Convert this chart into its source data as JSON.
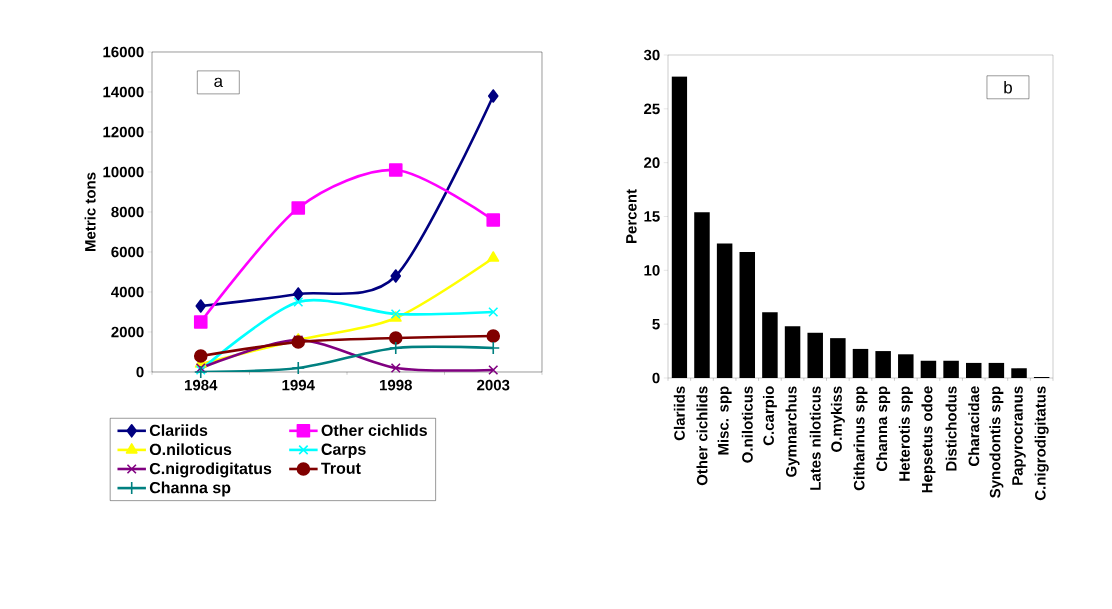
{
  "chart_data": [
    {
      "type": "line",
      "ylabel": "Metric tons",
      "categories": [
        "1984",
        "1994",
        "1998",
        "2003"
      ],
      "ylim": [
        0,
        16000
      ],
      "yticks": [
        0,
        2000,
        4000,
        6000,
        8000,
        10000,
        12000,
        14000,
        16000
      ],
      "legend": "bottom",
      "line_style": "solid",
      "annotations": [
        "a"
      ],
      "series": [
        {
          "name": "Clariids",
          "color": "#000080",
          "marker": "diamond",
          "values": [
            3300,
            3900,
            4800,
            13800
          ]
        },
        {
          "name": "Other cichlids",
          "color": "#ff00ff",
          "marker": "square",
          "values": [
            2500,
            8200,
            10100,
            7600
          ]
        },
        {
          "name": "O.niloticus",
          "color": "#ffff00",
          "marker": "triangle",
          "values": [
            400,
            1600,
            2700,
            5700
          ]
        },
        {
          "name": "Carps",
          "color": "#00ffff",
          "marker": "cross",
          "values": [
            100,
            3500,
            2900,
            3000
          ]
        },
        {
          "name": "C.nigrodigitatus",
          "color": "#800080",
          "marker": "cross",
          "values": [
            200,
            1600,
            200,
            100
          ]
        },
        {
          "name": "Trout",
          "color": "#800000",
          "marker": "circle",
          "values": [
            800,
            1500,
            1700,
            1800
          ]
        },
        {
          "name": "Channa sp",
          "color": "#008080",
          "marker": "plus",
          "values": [
            0,
            200,
            1200,
            1200
          ]
        }
      ]
    },
    {
      "type": "bar",
      "ylabel": "Percent",
      "annotations": [
        "b"
      ],
      "color": "#000000",
      "categories": [
        "Clariids",
        "Other cichlids",
        "Misc. spp",
        "O.niloticus",
        "C.carpio",
        "Gymnarchus",
        "Lates niloticus",
        "O.mykiss",
        "Citharinus spp",
        "Channa spp",
        "Heterotis spp",
        "Hepsetus odoe",
        "Distichodus",
        "Characidae",
        "Synodontis spp",
        "Papyrocranus",
        "C.nigrodigitatus"
      ],
      "values": [
        28,
        15.4,
        12.5,
        11.7,
        6.1,
        4.8,
        4.2,
        3.7,
        2.7,
        2.5,
        2.2,
        1.6,
        1.6,
        1.4,
        1.4,
        0.9,
        0.1
      ],
      "ylim": [
        0,
        30
      ],
      "yticks": [
        0,
        5,
        10,
        15,
        20,
        25,
        30
      ]
    }
  ]
}
